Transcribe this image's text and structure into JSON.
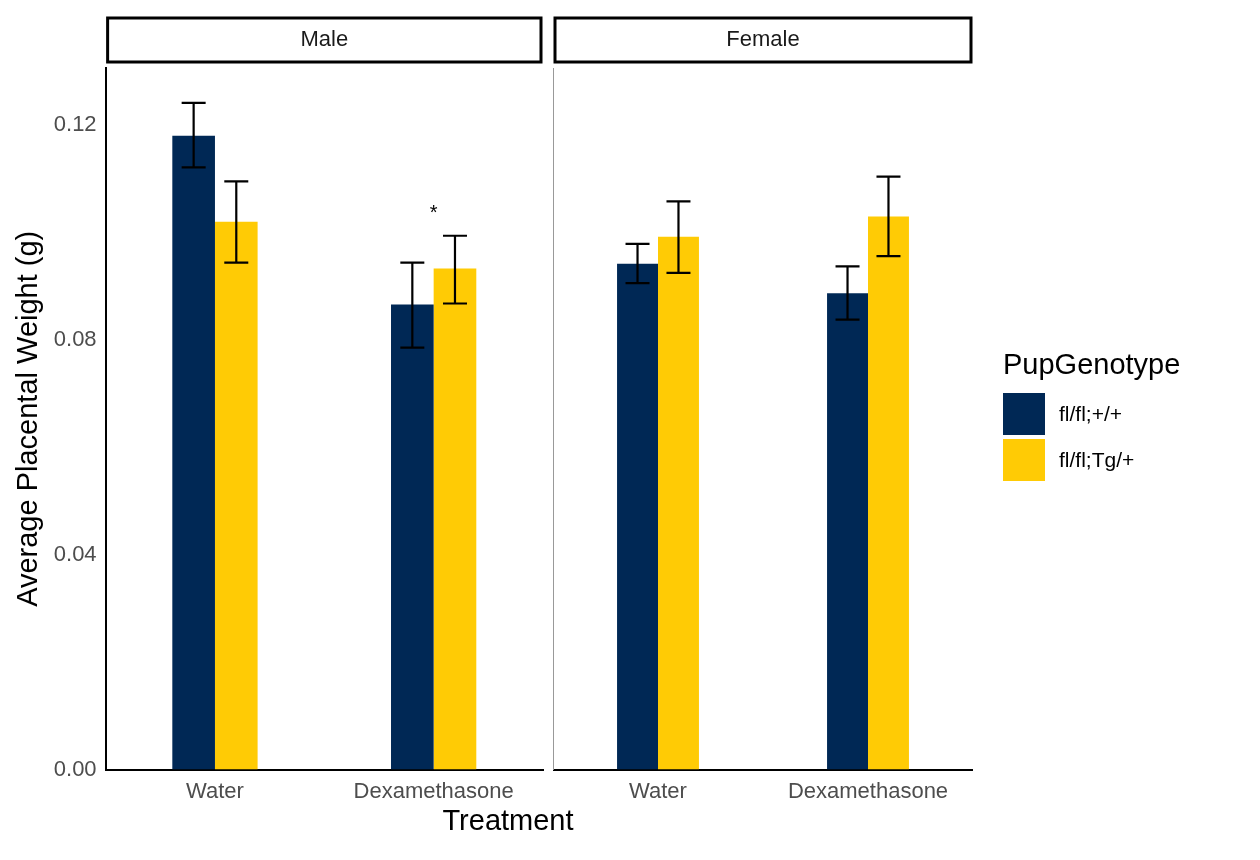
{
  "chart_data": [
    {
      "type": "bar",
      "title": "Male",
      "ylabel": "Average Placental Weight (g)",
      "xlabel": "Treatment",
      "categories": [
        "Water",
        "Dexamethasone"
      ],
      "ylim": [
        0,
        0.1305
      ],
      "yticks": [
        {
          "value": 0,
          "label": "0.00"
        },
        {
          "value": 0.04,
          "label": "0.04"
        },
        {
          "value": 0.08,
          "label": "0.08"
        },
        {
          "value": 0.12,
          "label": "0.12"
        }
      ],
      "series": [
        {
          "color": "#002855",
          "values": [
            0.1179,
            0.0865
          ],
          "errors": [
            [
              0.112,
              0.124
            ],
            [
              0.0785,
              0.0943
            ]
          ]
        },
        {
          "color": "#ffcb05",
          "values": [
            0.1019,
            0.0932
          ],
          "errors": [
            [
              0.0943,
              0.1094
            ],
            [
              0.0867,
              0.0993
            ]
          ]
        }
      ],
      "annotations": [
        "*"
      ]
    },
    {
      "type": "bar",
      "title": "Female",
      "categories": [
        "Water",
        "Dexamethasone"
      ],
      "ylim": [
        0,
        0.1305
      ],
      "tick_labels": "x",
      "legend": "right",
      "legend_title": "PupGenotype",
      "series": [
        {
          "name": "fl/fl;+/+",
          "color": "#002855",
          "values": [
            0.0941,
            0.0886
          ],
          "errors": [
            [
              0.0905,
              0.0978
            ],
            [
              0.0837,
              0.0936
            ]
          ]
        },
        {
          "name": "fl/fl;Tg/+",
          "color": "#ffcb05",
          "values": [
            0.0991,
            0.1029
          ],
          "errors": [
            [
              0.0924,
              0.1057
            ],
            [
              0.0955,
              0.1103
            ]
          ]
        }
      ]
    }
  ]
}
